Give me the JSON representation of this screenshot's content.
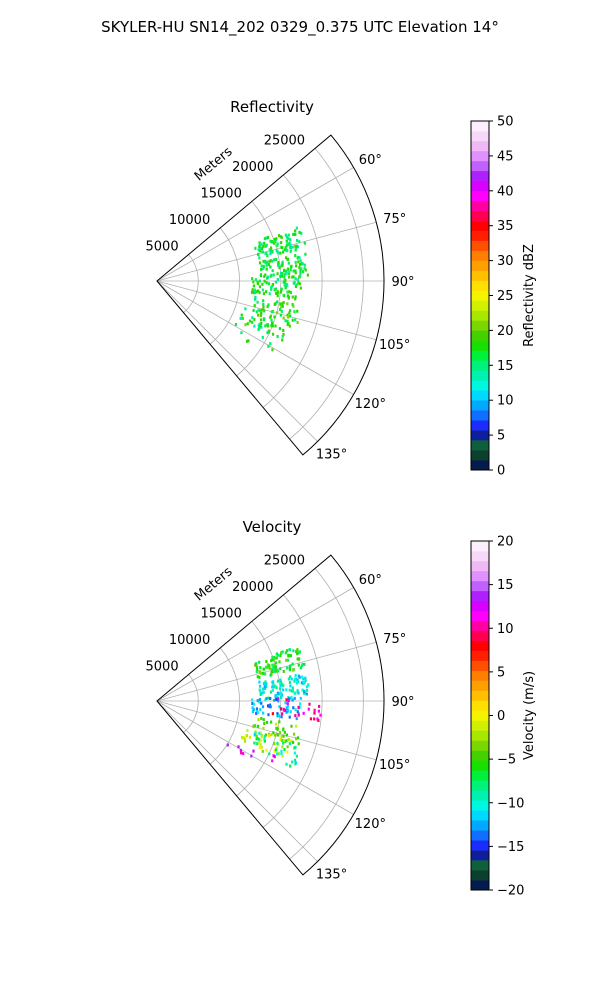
{
  "figure": {
    "title": "SKYLER-HU  SN14_202  0329_0.375 UTC Elevation 14°"
  },
  "chart_data": [
    {
      "type": "scatter",
      "projection": "polar-sector",
      "title": "Reflectivity",
      "range_label": "Meters",
      "range_ticks": [
        5000,
        10000,
        15000,
        20000,
        25000
      ],
      "range_tick_labels": [
        "5000",
        "10000",
        "15000",
        "20000",
        "25000"
      ],
      "rlim": [
        0,
        27500
      ],
      "azimuth_range_deg": [
        50,
        140
      ],
      "azimuth_ticks_deg": [
        60,
        75,
        90,
        105,
        120,
        135
      ],
      "azimuth_tick_labels": [
        "60°",
        "75°",
        "90°",
        "105°",
        "120°",
        "135°"
      ],
      "grid": true,
      "colorbar": {
        "label": "Reflectivity dBZ",
        "range": [
          0,
          50
        ],
        "ticks": [
          0,
          5,
          10,
          15,
          20,
          25,
          30,
          35,
          40,
          45,
          50
        ],
        "tick_labels": [
          "0",
          "5",
          "10",
          "15",
          "20",
          "25",
          "30",
          "35",
          "40",
          "45",
          "50"
        ]
      },
      "clusters": [
        {
          "az": 73,
          "r": 15500,
          "value": 16,
          "count": 90
        },
        {
          "az": 84,
          "r": 15500,
          "value": 17,
          "count": 90
        },
        {
          "az": 93,
          "r": 14500,
          "value": 17,
          "count": 70
        },
        {
          "az": 104,
          "r": 15000,
          "value": 18,
          "count": 45
        },
        {
          "az": 111,
          "r": 14000,
          "value": 17,
          "count": 50
        },
        {
          "az": 120,
          "r": 13500,
          "value": 18,
          "count": 10
        }
      ]
    },
    {
      "type": "scatter",
      "projection": "polar-sector",
      "title": "Velocity",
      "range_label": "Meters",
      "range_ticks": [
        5000,
        10000,
        15000,
        20000,
        25000
      ],
      "range_tick_labels": [
        "5000",
        "10000",
        "15000",
        "20000",
        "25000"
      ],
      "rlim": [
        0,
        27500
      ],
      "azimuth_range_deg": [
        50,
        140
      ],
      "azimuth_ticks_deg": [
        60,
        75,
        90,
        105,
        120,
        135
      ],
      "azimuth_tick_labels": [
        "60°",
        "75°",
        "90°",
        "105°",
        "120°",
        "135°"
      ],
      "grid": true,
      "colorbar": {
        "label": "Velocity (m/s)",
        "range": [
          -20,
          20
        ],
        "ticks": [
          -20,
          -15,
          -10,
          -5,
          0,
          5,
          10,
          15,
          20
        ],
        "tick_labels": [
          "−20",
          "−15",
          "−10",
          "−5",
          "0",
          "5",
          "10",
          "15",
          "20"
        ]
      },
      "clusters": [
        {
          "az": 73,
          "r": 15500,
          "value": -6,
          "count": 90
        },
        {
          "az": 84,
          "r": 15500,
          "value": -10,
          "count": 90
        },
        {
          "az": 93,
          "r": 14500,
          "value": -12,
          "count": 60
        },
        {
          "az": 93,
          "r": 17000,
          "value": 10,
          "count": 25
        },
        {
          "az": 104,
          "r": 15000,
          "value": -4,
          "count": 45
        },
        {
          "az": 111,
          "r": 14000,
          "value": -1,
          "count": 40
        },
        {
          "az": 112,
          "r": 15500,
          "value": -9,
          "count": 30
        },
        {
          "az": 118,
          "r": 13000,
          "value": 12,
          "count": 10
        }
      ]
    }
  ]
}
